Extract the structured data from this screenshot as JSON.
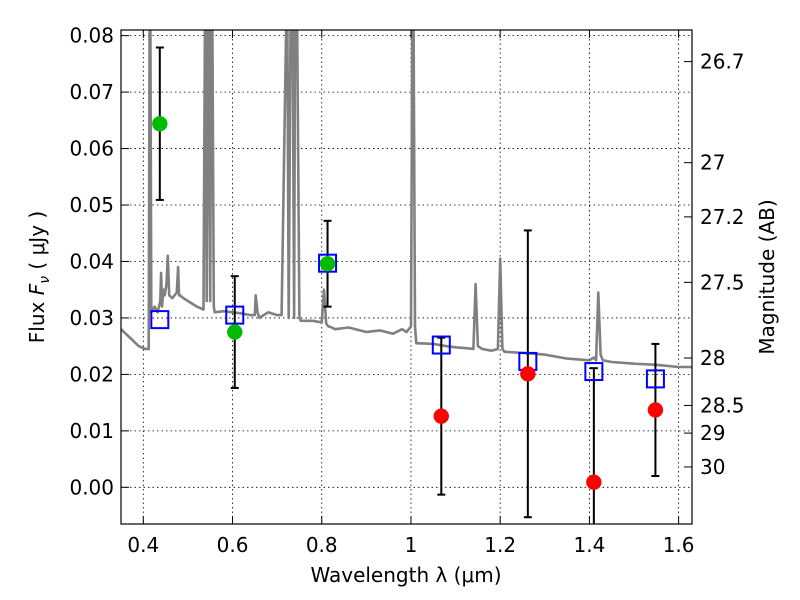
{
  "chart_data": {
    "type": "scatter",
    "title": "",
    "xlabel": "Wavelength  λ (μm)",
    "ylabel": "Flux  F_ν  ( μJy )",
    "ylabel_parts": {
      "prefix": "Flux  ",
      "symbol": "F",
      "subscript": "ν",
      "unit_open": "  ( ",
      "unit": "μJy",
      "unit_close": " )"
    },
    "y2label": "Magnitude (AB)",
    "xlim": [
      0.35,
      1.63
    ],
    "ylim": [
      -0.0065,
      0.081
    ],
    "grid": true,
    "grid_style": "dotted",
    "x_ticks": [
      0.4,
      0.6,
      0.8,
      1.0,
      1.2,
      1.4,
      1.6
    ],
    "x_tick_labels": [
      "0.4",
      "0.6",
      "0.8",
      "1",
      "1.2",
      "1.4",
      "1.6"
    ],
    "y_ticks": [
      0.0,
      0.01,
      0.02,
      0.03,
      0.04,
      0.05,
      0.06,
      0.07,
      0.08
    ],
    "y_tick_labels": [
      "0.00",
      "0.01",
      "0.02",
      "0.03",
      "0.04",
      "0.05",
      "0.06",
      "0.07",
      "0.08"
    ],
    "mag_ticks": [
      {
        "label": "26.7",
        "flux": 0.0754
      },
      {
        "label": "27",
        "flux": 0.0575
      },
      {
        "label": "27.2",
        "flux": 0.0479
      },
      {
        "label": "27.5",
        "flux": 0.0363
      },
      {
        "label": "28",
        "flux": 0.0229
      },
      {
        "label": "28.5",
        "flux": 0.0145
      },
      {
        "label": "29",
        "flux": 0.0096
      },
      {
        "label": "30",
        "flux": 0.0036
      }
    ],
    "colors": {
      "model": "#808080",
      "model_photometry": "#0000ff",
      "detections": "#00bb00",
      "upper_limits": "#ff0000",
      "errorbar": "#000000"
    },
    "model_spectrum": {
      "x": [
        0.35,
        0.37,
        0.39,
        0.405,
        0.412,
        0.414,
        0.416,
        0.418,
        0.425,
        0.432,
        0.438,
        0.44,
        0.442,
        0.445,
        0.448,
        0.452,
        0.455,
        0.458,
        0.465,
        0.475,
        0.478,
        0.48,
        0.482,
        0.49,
        0.5,
        0.52,
        0.535,
        0.538,
        0.54,
        0.542,
        0.545,
        0.547,
        0.55,
        0.552,
        0.555,
        0.558,
        0.56,
        0.58,
        0.6,
        0.62,
        0.64,
        0.65,
        0.652,
        0.656,
        0.66,
        0.68,
        0.7,
        0.71,
        0.72,
        0.723,
        0.726,
        0.73,
        0.735,
        0.738,
        0.74,
        0.745,
        0.75,
        0.753,
        0.76,
        0.78,
        0.8,
        0.805,
        0.81,
        0.815,
        0.82,
        0.83,
        0.86,
        0.9,
        0.93,
        0.96,
        0.98,
        0.99,
        1.0,
        1.003,
        1.006,
        1.009,
        1.012,
        1.02,
        1.05,
        1.08,
        1.1,
        1.13,
        1.14,
        1.145,
        1.15,
        1.16,
        1.18,
        1.195,
        1.2,
        1.205,
        1.21,
        1.25,
        1.3,
        1.35,
        1.4,
        1.41,
        1.415,
        1.42,
        1.425,
        1.43,
        1.45,
        1.5,
        1.55,
        1.6,
        1.63
      ],
      "y": [
        0.028,
        0.0265,
        0.025,
        0.0245,
        0.0245,
        0.081,
        0.081,
        0.031,
        0.032,
        0.031,
        0.033,
        0.038,
        0.032,
        0.035,
        0.034,
        0.036,
        0.041,
        0.034,
        0.0335,
        0.0345,
        0.039,
        0.034,
        0.034,
        0.0335,
        0.033,
        0.032,
        0.0315,
        0.081,
        0.081,
        0.033,
        0.081,
        0.081,
        0.033,
        0.081,
        0.081,
        0.032,
        0.031,
        0.0312,
        0.031,
        0.0308,
        0.0305,
        0.0305,
        0.034,
        0.031,
        0.03,
        0.031,
        0.0305,
        0.0305,
        0.081,
        0.081,
        0.03,
        0.081,
        0.081,
        0.03,
        0.081,
        0.081,
        0.03,
        0.0295,
        0.0295,
        0.0295,
        0.0292,
        0.035,
        0.029,
        0.0285,
        0.0284,
        0.028,
        0.0283,
        0.0275,
        0.0278,
        0.0272,
        0.028,
        0.0275,
        0.0285,
        0.081,
        0.081,
        0.0285,
        0.0255,
        0.0255,
        0.0254,
        0.025,
        0.0248,
        0.0246,
        0.0245,
        0.036,
        0.025,
        0.0245,
        0.0242,
        0.0245,
        0.0405,
        0.0245,
        0.024,
        0.0238,
        0.0235,
        0.0228,
        0.0225,
        0.023,
        0.0225,
        0.0345,
        0.0235,
        0.0225,
        0.0222,
        0.0219,
        0.0217,
        0.0213,
        0.0213
      ]
    },
    "model_photometry": {
      "x": [
        0.437,
        0.605,
        0.813,
        1.068,
        1.262,
        1.41,
        1.548
      ],
      "y": [
        0.0297,
        0.0305,
        0.0397,
        0.0252,
        0.0223,
        0.0205,
        0.0192
      ]
    },
    "observed": {
      "x": [
        0.437,
        0.605,
        0.813,
        1.068,
        1.262,
        1.41,
        1.548
      ],
      "y": [
        0.0644,
        0.0275,
        0.0396,
        0.0126,
        0.0201,
        0.0009,
        0.0137
      ],
      "yerr": [
        0.0135,
        0.0099,
        0.0076,
        0.0139,
        0.0254,
        0.0202,
        0.0117
      ],
      "detected": [
        true,
        true,
        true,
        false,
        false,
        false,
        false
      ]
    }
  }
}
